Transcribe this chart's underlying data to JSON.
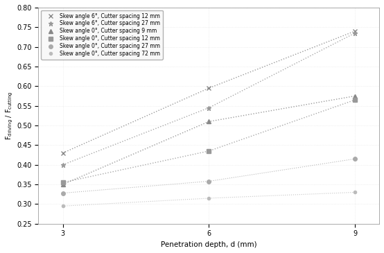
{
  "x_values": [
    3,
    6,
    9
  ],
  "series": [
    {
      "label": "Skew angle 6°, Cutter spacing 12 mm",
      "y": [
        0.43,
        0.595,
        0.74
      ],
      "marker": "x",
      "linestyle": ":",
      "color": "#888888",
      "markersize": 5,
      "linewidth": 1.0
    },
    {
      "label": "Skew angle 6°, Cutter spacing 27 mm",
      "y": [
        0.4,
        0.545,
        0.735
      ],
      "marker": "*",
      "linestyle": ":",
      "color": "#999999",
      "markersize": 5,
      "linewidth": 1.0
    },
    {
      "label": "Skew angle 0°, Cutter spacing 9 mm",
      "y": [
        0.35,
        0.51,
        0.575
      ],
      "marker": "^",
      "linestyle": ":",
      "color": "#888888",
      "markersize": 4,
      "linewidth": 1.0
    },
    {
      "label": "Skew angle 0°, Cutter spacing 12 mm",
      "y": [
        0.355,
        0.435,
        0.565
      ],
      "marker": "s",
      "linestyle": ":",
      "color": "#999999",
      "markersize": 4,
      "linewidth": 1.0
    },
    {
      "label": "Skew angle 0°, Cutter spacing 27 mm",
      "y": [
        0.328,
        0.358,
        0.415
      ],
      "marker": "o",
      "linestyle": ":",
      "color": "#aaaaaa",
      "markersize": 4,
      "linewidth": 0.8
    },
    {
      "label": "Skew angle 0°, Cutter spacing 72 mm",
      "y": [
        0.295,
        0.315,
        0.33
      ],
      "marker": "o",
      "linestyle": ":",
      "color": "#bbbbbb",
      "markersize": 3,
      "linewidth": 0.8
    }
  ],
  "xlabel": "Penetration depth, d (mm)",
  "ylabel": "F_driving / F_cutting",
  "ylim": [
    0.25,
    0.8
  ],
  "xlim": [
    2.5,
    9.5
  ],
  "xticks": [
    3,
    6,
    9
  ],
  "yticks": [
    0.25,
    0.3,
    0.35,
    0.4,
    0.45,
    0.5,
    0.55,
    0.6,
    0.65,
    0.7,
    0.75,
    0.8
  ],
  "background_color": "#ffffff",
  "grid": true
}
